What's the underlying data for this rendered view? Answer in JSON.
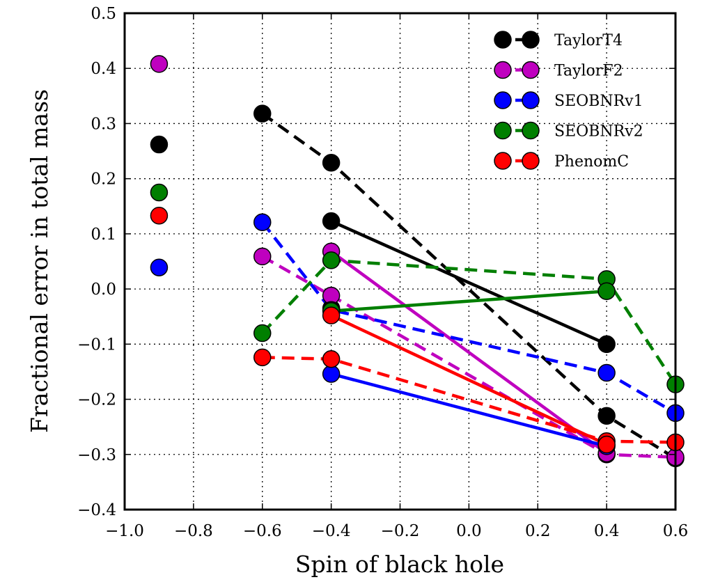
{
  "chart_data": {
    "type": "scatter",
    "title": "",
    "xlabel": "Spin of black hole",
    "ylabel": "Fractional error in total mass",
    "xlim": [
      -1.0,
      0.6
    ],
    "ylim": [
      -0.4,
      0.5
    ],
    "xticks": [
      -1.0,
      -0.8,
      -0.6,
      -0.4,
      -0.2,
      0.0,
      0.2,
      0.4,
      0.6
    ],
    "xtick_labels": [
      "−1.0",
      "−0.8",
      "−0.6",
      "−0.4",
      "−0.2",
      "0.0",
      "0.2",
      "0.4",
      "0.6"
    ],
    "yticks": [
      -0.4,
      -0.3,
      -0.2,
      -0.1,
      0.0,
      0.1,
      0.2,
      0.3,
      0.4,
      0.5
    ],
    "ytick_labels": [
      "−0.4",
      "−0.3",
      "−0.2",
      "−0.1",
      "0.0",
      "0.1",
      "0.2",
      "0.3",
      "0.4",
      "0.5"
    ],
    "grid": true,
    "legend_position": "top-right",
    "legend": [
      {
        "name": "TaylorT4",
        "color": "#000000"
      },
      {
        "name": "TaylorF2",
        "color": "#bf00bf"
      },
      {
        "name": "SEOBNRv1",
        "color": "#0000ff"
      },
      {
        "name": "SEOBNRv2",
        "color": "#007f00"
      },
      {
        "name": "PhenomC",
        "color": "#ff0000"
      }
    ],
    "series": [
      {
        "name": "TaylorT4",
        "style": "dashed",
        "color": "#000000",
        "points": [
          [
            -0.6,
            0.318
          ],
          [
            -0.4,
            0.229
          ],
          [
            0.4,
            -0.23
          ],
          [
            0.6,
            -0.307
          ]
        ]
      },
      {
        "name": "TaylorT4",
        "style": "solid",
        "color": "#000000",
        "points": [
          [
            -0.4,
            0.123
          ],
          [
            0.4,
            -0.1
          ]
        ]
      },
      {
        "name": "TaylorT4",
        "style": "marker",
        "color": "#000000",
        "points": [
          [
            -0.9,
            0.262
          ],
          [
            -0.4,
            -0.035
          ]
        ]
      },
      {
        "name": "TaylorF2",
        "style": "dashed",
        "color": "#bf00bf",
        "points": [
          [
            -0.6,
            0.059
          ],
          [
            -0.4,
            -0.012
          ],
          [
            0.4,
            -0.3
          ],
          [
            0.6,
            -0.305
          ]
        ]
      },
      {
        "name": "TaylorF2",
        "style": "solid",
        "color": "#bf00bf",
        "points": [
          [
            -0.4,
            0.068
          ],
          [
            0.4,
            -0.298
          ]
        ]
      },
      {
        "name": "TaylorF2",
        "style": "marker",
        "color": "#bf00bf",
        "points": [
          [
            -0.9,
            0.408
          ]
        ]
      },
      {
        "name": "SEOBNRv1",
        "style": "dashed",
        "color": "#0000ff",
        "points": [
          [
            -0.6,
            0.121
          ],
          [
            -0.4,
            -0.038
          ],
          [
            0.4,
            -0.152
          ],
          [
            0.6,
            -0.225
          ]
        ]
      },
      {
        "name": "SEOBNRv1",
        "style": "solid",
        "color": "#0000ff",
        "points": [
          [
            -0.4,
            -0.154
          ],
          [
            0.4,
            -0.285
          ]
        ]
      },
      {
        "name": "SEOBNRv1",
        "style": "marker",
        "color": "#0000ff",
        "points": [
          [
            -0.9,
            0.039
          ]
        ]
      },
      {
        "name": "SEOBNRv2",
        "style": "dashed",
        "color": "#007f00",
        "points": [
          [
            -0.6,
            -0.08
          ],
          [
            -0.4,
            0.052
          ],
          [
            0.4,
            0.018
          ],
          [
            0.6,
            -0.173
          ]
        ]
      },
      {
        "name": "SEOBNRv2",
        "style": "solid",
        "color": "#007f00",
        "points": [
          [
            -0.4,
            -0.04
          ],
          [
            0.4,
            -0.004
          ]
        ]
      },
      {
        "name": "SEOBNRv2",
        "style": "marker",
        "color": "#007f00",
        "points": [
          [
            -0.9,
            0.175
          ]
        ]
      },
      {
        "name": "PhenomC",
        "style": "dashed",
        "color": "#ff0000",
        "points": [
          [
            -0.6,
            -0.124
          ],
          [
            -0.4,
            -0.127
          ],
          [
            0.4,
            -0.276
          ],
          [
            0.6,
            -0.278
          ]
        ]
      },
      {
        "name": "PhenomC",
        "style": "solid",
        "color": "#ff0000",
        "points": [
          [
            -0.4,
            -0.048
          ],
          [
            0.4,
            -0.282
          ]
        ]
      },
      {
        "name": "PhenomC",
        "style": "marker",
        "color": "#ff0000",
        "points": [
          [
            -0.9,
            0.133
          ]
        ]
      }
    ]
  }
}
